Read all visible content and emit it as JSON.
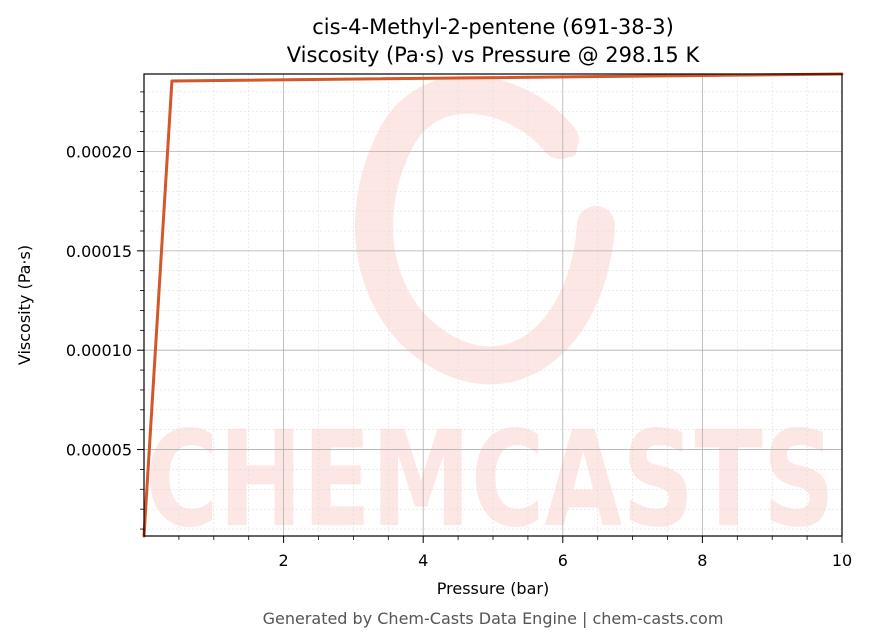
{
  "chart_data": {
    "type": "line",
    "title": "cis-4-Methyl-2-pentene (691-38-3)",
    "subtitle": "Viscosity (Pa·s) vs Pressure @ 298.15 K",
    "xlabel": "Pressure (bar)",
    "ylabel": "Viscosity (Pa·s)",
    "xlim": [
      0.0,
      10.0
    ],
    "ylim": [
      6.5e-06,
      0.000239
    ],
    "xticks": [
      2,
      4,
      6,
      8,
      10
    ],
    "xtick_labels": [
      "2",
      "4",
      "6",
      "8",
      "10"
    ],
    "yticks": [
      5e-05,
      0.0001,
      0.00015,
      0.0002
    ],
    "ytick_labels": [
      "0.00005",
      "0.00010",
      "0.00015",
      "0.00020"
    ],
    "grid": true,
    "series": [
      {
        "color": "#d4572a",
        "x": [
          0.0,
          0.4,
          10.0
        ],
        "y": [
          6.5e-06,
          0.0002355,
          0.000239
        ]
      }
    ]
  },
  "watermark": {
    "text": "CHEMCASTS",
    "color": "#fde7e5"
  },
  "footer": {
    "text": "Generated by Chem-Casts Data Engine | chem-casts.com"
  },
  "colors": {
    "line": "#d4572a",
    "grid_major": "#b0b0b0",
    "grid_minor": "#dddddd",
    "axes": "#000000"
  }
}
